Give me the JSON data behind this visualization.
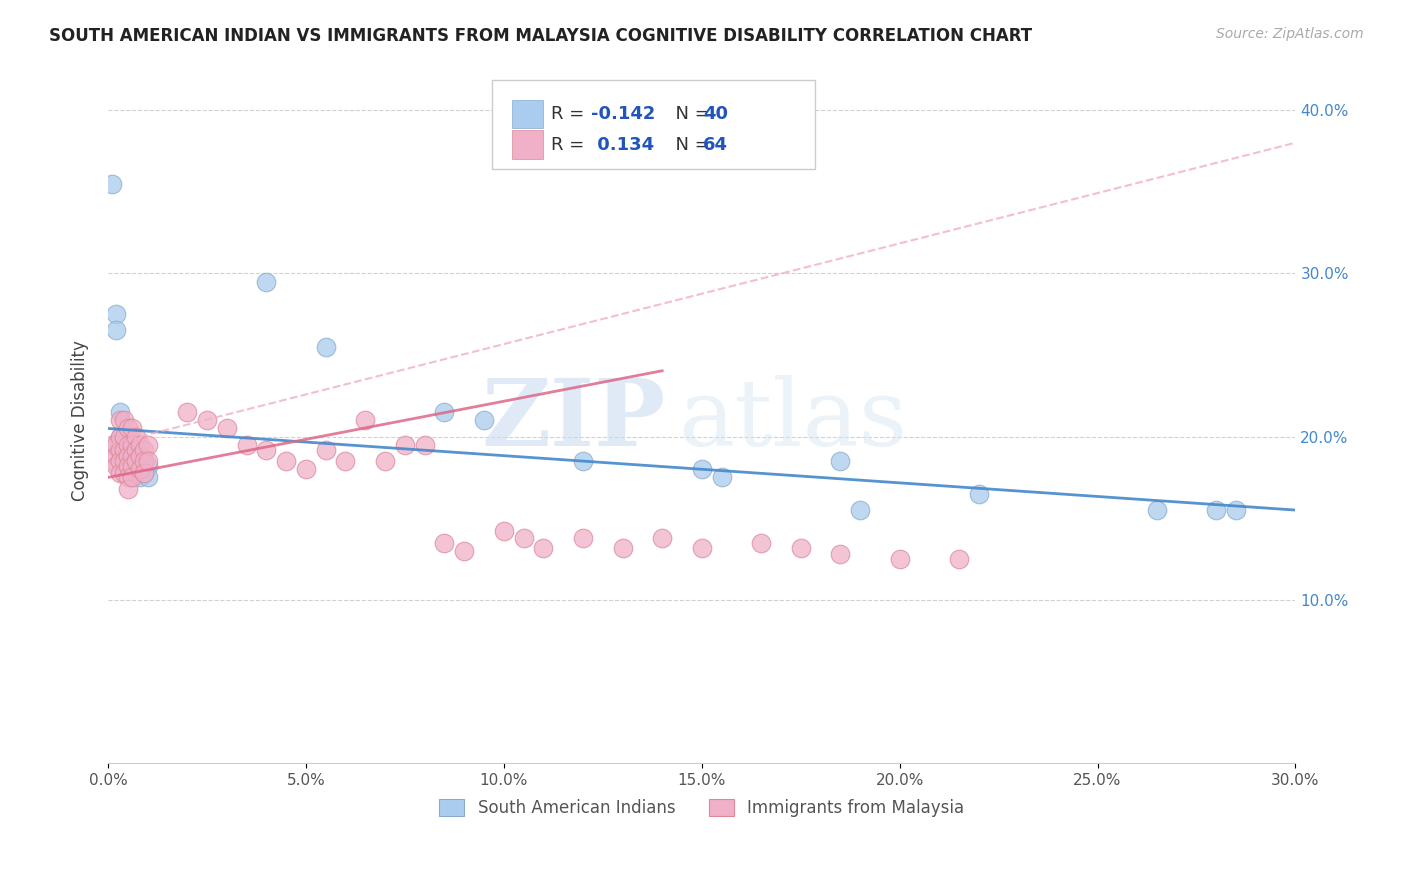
{
  "title": "SOUTH AMERICAN INDIAN VS IMMIGRANTS FROM MALAYSIA COGNITIVE DISABILITY CORRELATION CHART",
  "source": "Source: ZipAtlas.com",
  "ylabel": "Cognitive Disability",
  "watermark_zip": "ZIP",
  "watermark_atlas": "atlas",
  "xlim": [
    0.0,
    0.3
  ],
  "ylim": [
    0.0,
    0.42
  ],
  "xticks": [
    0.0,
    0.05,
    0.1,
    0.15,
    0.2,
    0.25,
    0.3
  ],
  "yticks": [
    0.1,
    0.2,
    0.3,
    0.4
  ],
  "xtick_labels": [
    "0.0%",
    "5.0%",
    "10.0%",
    "15.0%",
    "20.0%",
    "25.0%",
    "30.0%"
  ],
  "ytick_labels": [
    "10.0%",
    "20.0%",
    "30.0%",
    "40.0%"
  ],
  "series1_color": "#aaccee",
  "series2_color": "#f0b0c8",
  "series1_edge": "#88aacc",
  "series2_edge": "#dd8899",
  "series1_label": "South American Indians",
  "series2_label": "Immigrants from Malaysia",
  "series1_R": -0.142,
  "series1_N": 40,
  "series2_R": 0.134,
  "series2_N": 64,
  "trend1_color": "#4488cc",
  "trend2_color": "#dd6688",
  "trend_dashed_color": "#f0b0c0",
  "series1_x": [
    0.001,
    0.002,
    0.002,
    0.003,
    0.003,
    0.003,
    0.003,
    0.004,
    0.004,
    0.005,
    0.005,
    0.005,
    0.005,
    0.006,
    0.006,
    0.006,
    0.006,
    0.007,
    0.007,
    0.007,
    0.008,
    0.008,
    0.008,
    0.009,
    0.009,
    0.01,
    0.01,
    0.04,
    0.055,
    0.085,
    0.095,
    0.12,
    0.15,
    0.155,
    0.185,
    0.19,
    0.22,
    0.265,
    0.28,
    0.285
  ],
  "series1_y": [
    0.355,
    0.275,
    0.265,
    0.215,
    0.2,
    0.195,
    0.19,
    0.185,
    0.192,
    0.2,
    0.195,
    0.188,
    0.183,
    0.19,
    0.185,
    0.18,
    0.175,
    0.192,
    0.185,
    0.178,
    0.188,
    0.182,
    0.175,
    0.185,
    0.178,
    0.182,
    0.175,
    0.295,
    0.255,
    0.215,
    0.21,
    0.185,
    0.18,
    0.175,
    0.185,
    0.155,
    0.165,
    0.155,
    0.155,
    0.155
  ],
  "series2_x": [
    0.001,
    0.001,
    0.002,
    0.002,
    0.002,
    0.003,
    0.003,
    0.003,
    0.003,
    0.003,
    0.004,
    0.004,
    0.004,
    0.004,
    0.004,
    0.005,
    0.005,
    0.005,
    0.005,
    0.005,
    0.005,
    0.006,
    0.006,
    0.006,
    0.006,
    0.006,
    0.007,
    0.007,
    0.007,
    0.008,
    0.008,
    0.008,
    0.009,
    0.009,
    0.009,
    0.01,
    0.01,
    0.02,
    0.025,
    0.03,
    0.035,
    0.04,
    0.045,
    0.05,
    0.055,
    0.06,
    0.065,
    0.07,
    0.075,
    0.08,
    0.085,
    0.09,
    0.1,
    0.105,
    0.11,
    0.12,
    0.13,
    0.14,
    0.15,
    0.165,
    0.175,
    0.185,
    0.2,
    0.215
  ],
  "series2_y": [
    0.195,
    0.185,
    0.195,
    0.188,
    0.182,
    0.21,
    0.2,
    0.192,
    0.185,
    0.178,
    0.21,
    0.2,
    0.192,
    0.185,
    0.178,
    0.205,
    0.195,
    0.188,
    0.182,
    0.175,
    0.168,
    0.205,
    0.195,
    0.188,
    0.182,
    0.175,
    0.2,
    0.192,
    0.185,
    0.195,
    0.188,
    0.18,
    0.192,
    0.185,
    0.178,
    0.195,
    0.185,
    0.215,
    0.21,
    0.205,
    0.195,
    0.192,
    0.185,
    0.18,
    0.192,
    0.185,
    0.21,
    0.185,
    0.195,
    0.195,
    0.135,
    0.13,
    0.142,
    0.138,
    0.132,
    0.138,
    0.132,
    0.138,
    0.132,
    0.135,
    0.132,
    0.128,
    0.125,
    0.125
  ]
}
